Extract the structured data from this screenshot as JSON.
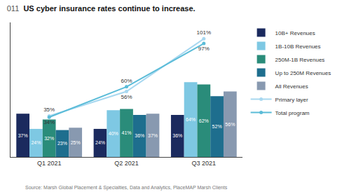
{
  "chart_data": {
    "type": "bar",
    "title": "US cyber insurance rates continue to increase.",
    "annotations": [
      "011",
      "Source: Marsh Global Placement & Specialties, Data and Analytics, PlaceMAP Marsh Clients"
    ],
    "categories": [
      "Q1 2021",
      "Q2 2021",
      "Q3 2021"
    ],
    "series": [
      {
        "name": "10B+ Revenues",
        "type": "bar",
        "color": "#1b2a5e",
        "values": [
          37,
          24,
          36
        ],
        "value_labels": [
          "37%",
          "24%",
          "36%"
        ]
      },
      {
        "name": "1B-10B Revenues",
        "type": "bar",
        "color": "#7ec8e3",
        "values": [
          24,
          40,
          64
        ],
        "value_labels": [
          "24%",
          "40%",
          "64%"
        ]
      },
      {
        "name": "250M-1B Revenues",
        "type": "bar",
        "color": "#2a8c7a",
        "values": [
          32,
          41,
          62
        ],
        "value_labels": [
          "32%",
          "41%",
          "62%"
        ]
      },
      {
        "name": "Up to 250M Revenues",
        "type": "bar",
        "color": "#1e6e8e",
        "values": [
          23,
          36,
          52
        ],
        "value_labels": [
          "23%",
          "36%",
          "52%"
        ]
      },
      {
        "name": "All Revenues",
        "type": "bar",
        "color": "#8899b0",
        "values": [
          25,
          37,
          56
        ],
        "value_labels": [
          "25%",
          "37%",
          "56%"
        ]
      },
      {
        "name": "Primary layer",
        "type": "line",
        "color": "#a8d8f0",
        "marker": "circle",
        "values": [
          35,
          56,
          101
        ],
        "value_labels": [
          "35%",
          "56%",
          "101%"
        ]
      },
      {
        "name": "Total program",
        "type": "line",
        "color": "#5bbcd8",
        "marker": "circle",
        "values": [
          34,
          60,
          97
        ],
        "value_labels": [
          "34%",
          "60%",
          "97%"
        ]
      }
    ],
    "ylim": [
      0,
      115
    ],
    "grid": false,
    "legend": "right",
    "data_labels": true,
    "tick_labels": "x"
  }
}
